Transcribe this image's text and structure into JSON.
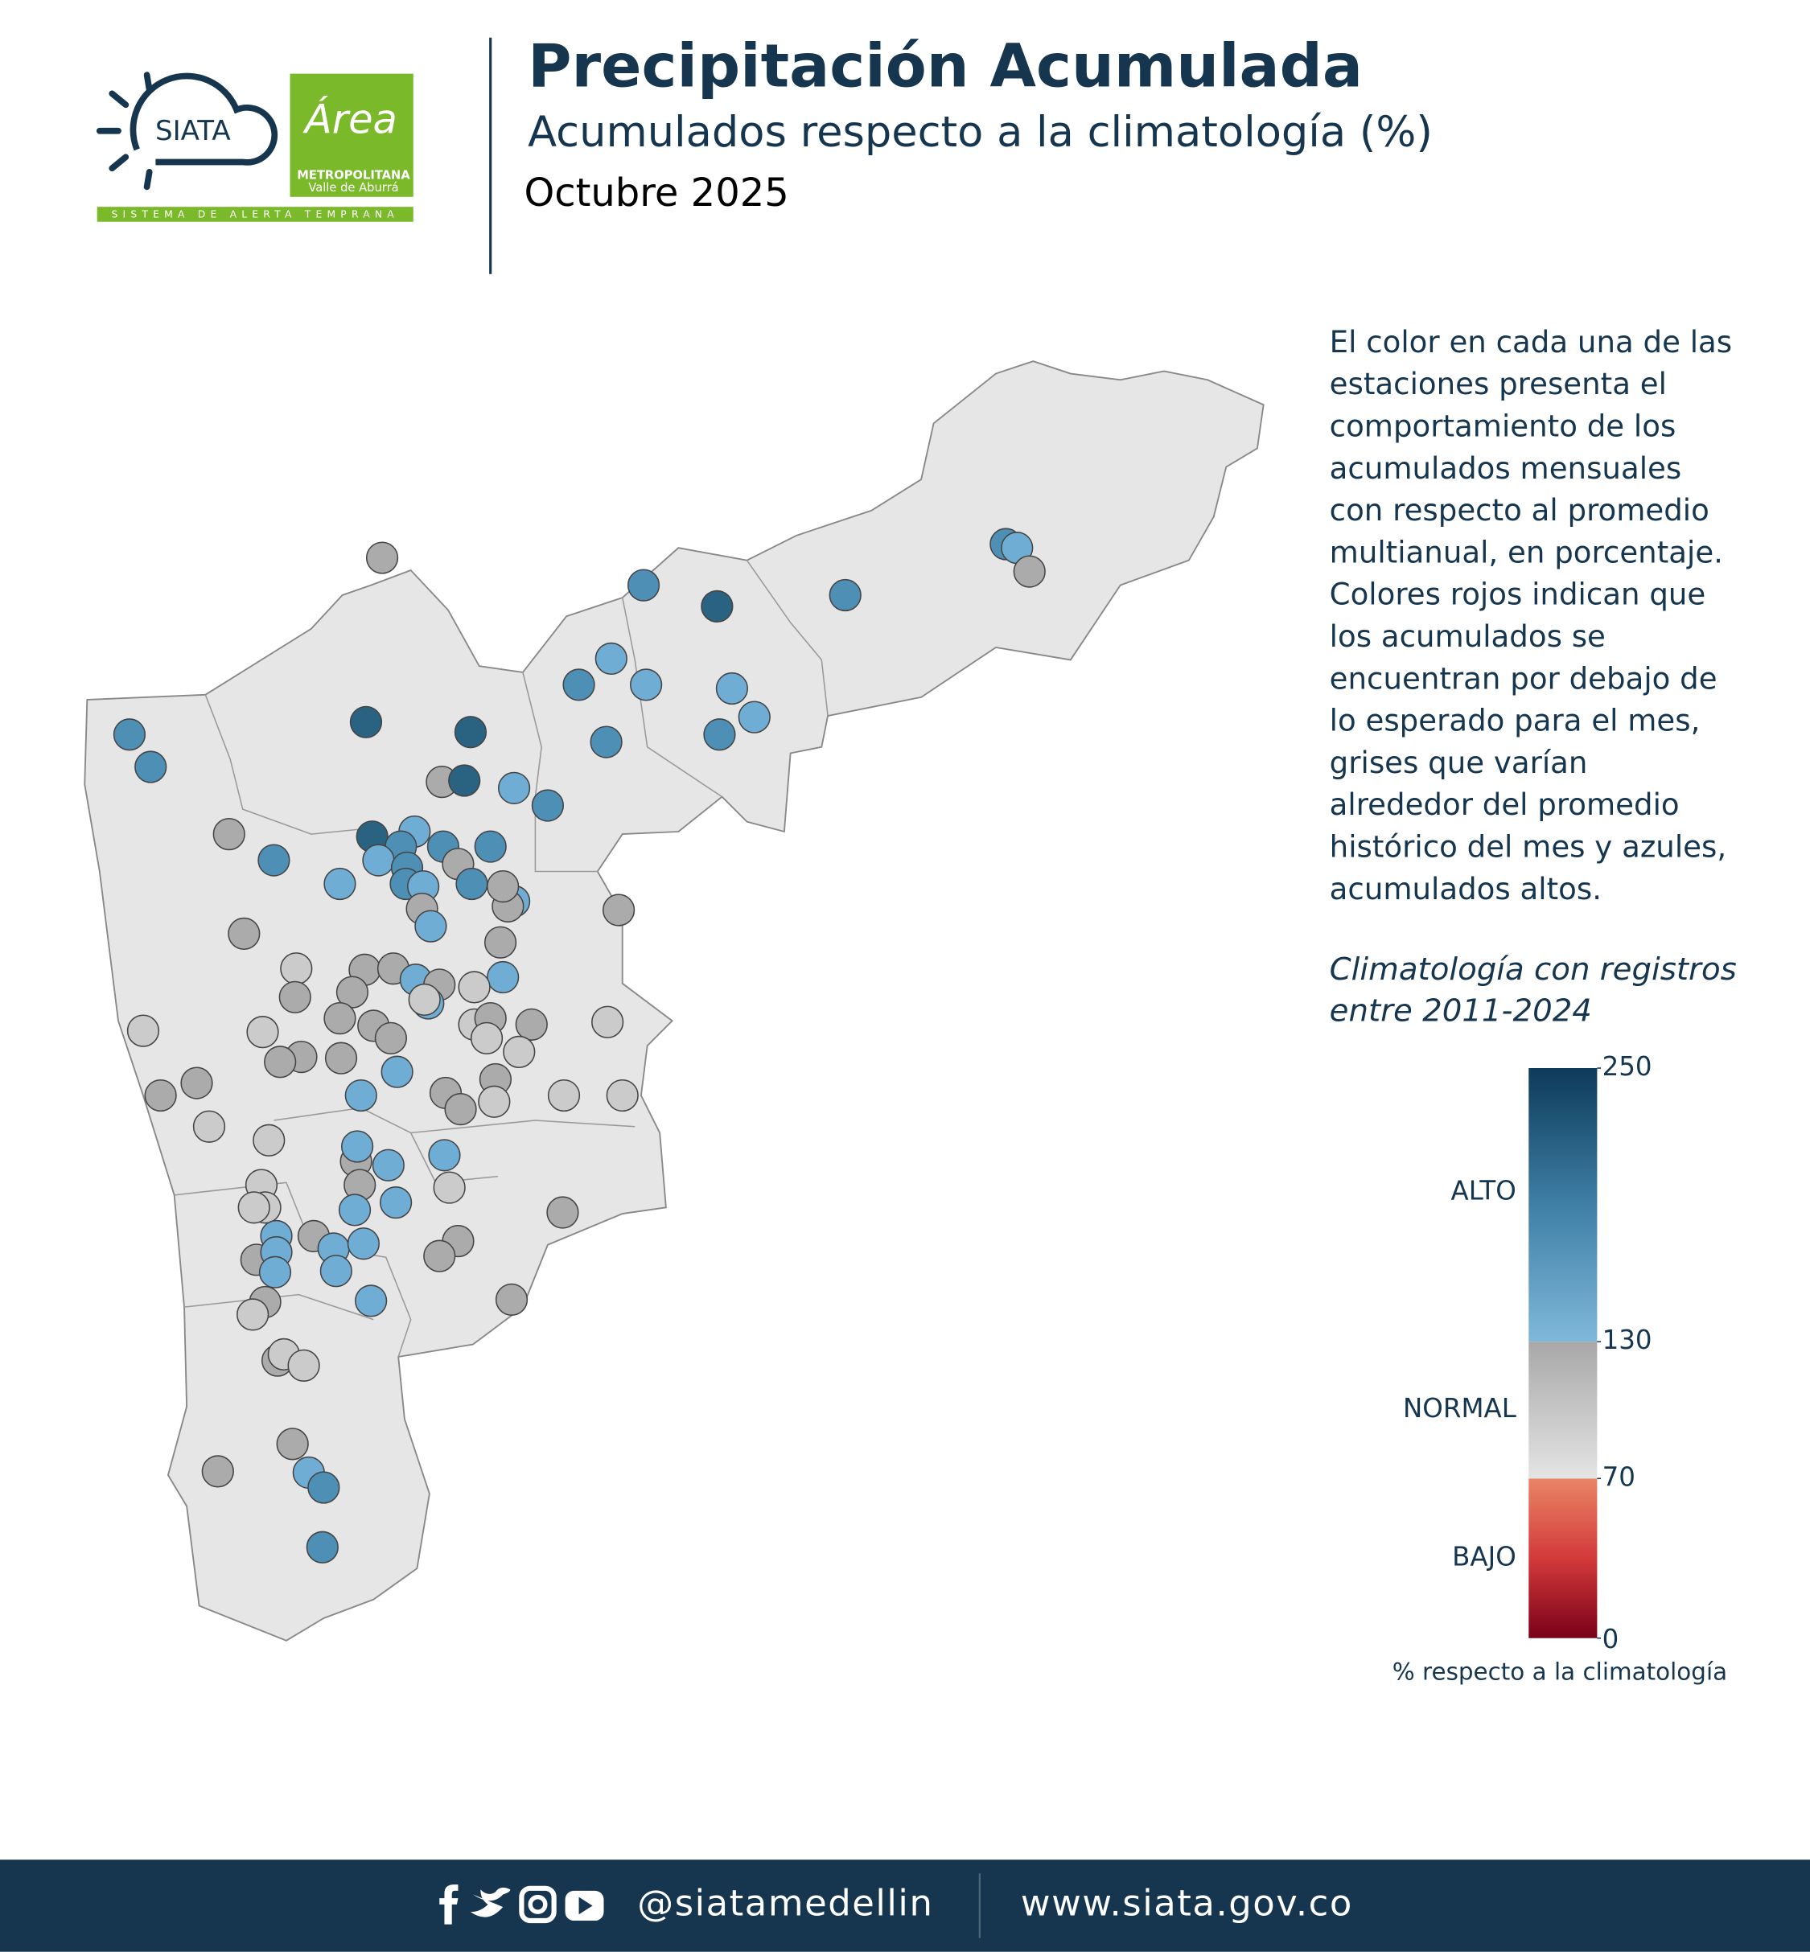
{
  "header": {
    "title": "Precipitación Acumulada",
    "subtitle": "Acumulados respecto a la climatología (%)",
    "period": "Octubre 2025"
  },
  "logos": {
    "siata": "SIATA",
    "area": "Área",
    "metropolitana": "METROPOLITANA",
    "valle": "Valle de Aburrá",
    "tagline": "SISTEMA DE ALERTA TEMPRANA"
  },
  "description": [
    "El color en cada una de las",
    "estaciones presenta el",
    "comportamiento de los",
    "acumulados mensuales",
    "con respecto al promedio",
    "multianual, en porcentaje.",
    "Colores rojos indican que",
    "los acumulados se",
    "encuentran por debajo de",
    "lo esperado para el mes,",
    "grises que varían",
    "alrededor del promedio",
    "histórico del mes y azules,",
    "acumulados altos."
  ],
  "climatology_note": [
    "Climatología con registros",
    "entre 2011-2024"
  ],
  "legend": {
    "lim": [
      0,
      250
    ],
    "ticks": [
      0,
      70,
      130,
      250
    ],
    "levels": [
      "BAJO",
      "NORMAL",
      "ALTO"
    ],
    "caption": "% respecto a la climatología"
  },
  "footer": {
    "handle": "@siatamedellin",
    "website": "www.siata.gov.co"
  }
}
